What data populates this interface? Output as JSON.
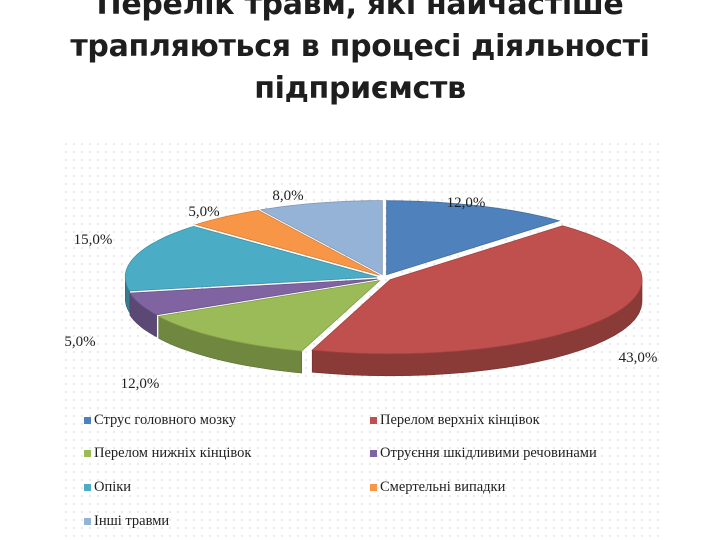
{
  "slide": {
    "title_lines": [
      "Перелік травм, які найчастіше",
      "трапляються в процесі діяльності",
      "підприємств"
    ]
  },
  "chart_data": {
    "type": "pie",
    "style": "3d-exploded",
    "grid": false,
    "legend_position": "bottom",
    "start_angle_deg": 90,
    "direction": "clockwise",
    "slices": [
      {
        "label": "Струс головного мозку",
        "value": 12.0,
        "value_label": "12,0%",
        "color": "#4f81bd"
      },
      {
        "label": "Перелом верхніх кінцівок",
        "value": 43.0,
        "value_label": "43,0%",
        "color": "#c0504d"
      },
      {
        "label": "Перелом нижніх кінцівок",
        "value": 12.0,
        "value_label": "12,0%",
        "color": "#9bbb59"
      },
      {
        "label": "Отруєння шкідливими речовинами",
        "value": 5.0,
        "value_label": "5,0%",
        "color": "#8064a2"
      },
      {
        "label": "Опіки",
        "value": 15.0,
        "value_label": "15,0%",
        "color": "#4bacc6"
      },
      {
        "label": "Смертельні випадки",
        "value": 5.0,
        "value_label": "5,0%",
        "color": "#f79646"
      },
      {
        "label": "Інші травми",
        "value": 8.0,
        "value_label": "8,0%",
        "color": "#95b3d7"
      }
    ]
  }
}
